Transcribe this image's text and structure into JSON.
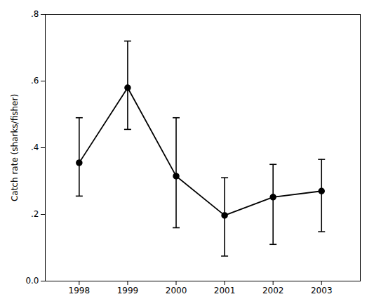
{
  "chart_data": {
    "type": "line",
    "x": [
      1998,
      1999,
      2000,
      2001,
      2002,
      2003
    ],
    "values": [
      0.355,
      0.58,
      0.315,
      0.197,
      0.252,
      0.27
    ],
    "ci_upper": [
      0.49,
      0.72,
      0.49,
      0.31,
      0.35,
      0.365
    ],
    "ci_lower": [
      0.255,
      0.455,
      0.16,
      0.075,
      0.11,
      0.148
    ],
    "ylabel": "Catch rate (sharks/fisher)",
    "ylim": [
      0.0,
      0.8
    ],
    "yticks": [
      {
        "value": 0.0,
        "label": "0.0"
      },
      {
        "value": 0.2,
        "label": ".2"
      },
      {
        "value": 0.4,
        "label": ".4"
      },
      {
        "value": 0.6,
        "label": ".6"
      },
      {
        "value": 0.8,
        "label": ".8"
      }
    ],
    "xlim": [
      1997.3,
      2003.8
    ],
    "xticks": [
      1998,
      1999,
      2000,
      2001,
      2002,
      2003
    ],
    "color": "#000000",
    "marker": "circle",
    "grid": false
  }
}
